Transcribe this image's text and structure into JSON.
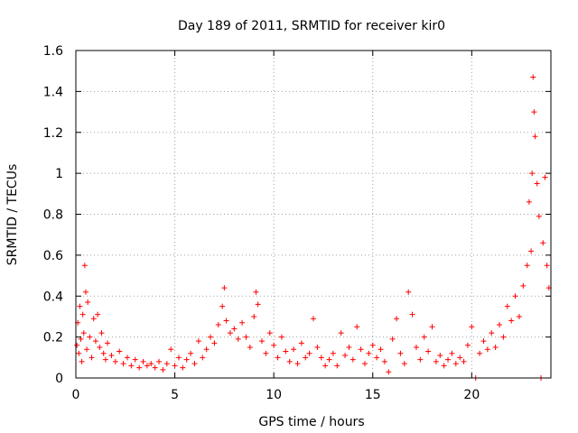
{
  "chart_data": {
    "type": "scatter",
    "title": "Day 189 of 2011, SRMTID for receiver kir0",
    "xlabel": "GPS time / hours",
    "ylabel": "SRMTID / TECUs",
    "xlim": [
      0,
      24
    ],
    "ylim": [
      0,
      1.6
    ],
    "x_ticks": [
      "0",
      "5",
      "10",
      "15",
      "20"
    ],
    "y_ticks": [
      "0",
      "0.2",
      "0.4",
      "0.6",
      "0.8",
      "1",
      "1.2",
      "1.4",
      "1.6"
    ],
    "grid": true,
    "marker": "+",
    "color": "#ff0000",
    "series": [
      {
        "points": [
          [
            0.05,
            0.16
          ],
          [
            0.1,
            0.27
          ],
          [
            0.15,
            0.12
          ],
          [
            0.2,
            0.35
          ],
          [
            0.25,
            0.19
          ],
          [
            0.3,
            0.08
          ],
          [
            0.35,
            0.31
          ],
          [
            0.4,
            0.22
          ],
          [
            0.45,
            0.55
          ],
          [
            0.5,
            0.42
          ],
          [
            0.55,
            0.14
          ],
          [
            0.6,
            0.37
          ],
          [
            0.7,
            0.2
          ],
          [
            0.8,
            0.1
          ],
          [
            0.9,
            0.29
          ],
          [
            1.0,
            0.18
          ],
          [
            1.1,
            0.31
          ],
          [
            1.2,
            0.15
          ],
          [
            1.3,
            0.22
          ],
          [
            1.4,
            0.12
          ],
          [
            1.5,
            0.09
          ],
          [
            1.6,
            0.17
          ],
          [
            1.8,
            0.11
          ],
          [
            2.0,
            0.08
          ],
          [
            2.2,
            0.13
          ],
          [
            2.4,
            0.07
          ],
          [
            2.6,
            0.1
          ],
          [
            2.8,
            0.06
          ],
          [
            3.0,
            0.09
          ],
          [
            3.2,
            0.05
          ],
          [
            3.4,
            0.08
          ],
          [
            3.6,
            0.06
          ],
          [
            3.8,
            0.07
          ],
          [
            4.0,
            0.05
          ],
          [
            4.2,
            0.08
          ],
          [
            4.4,
            0.04
          ],
          [
            4.6,
            0.07
          ],
          [
            4.8,
            0.14
          ],
          [
            5.0,
            0.06
          ],
          [
            5.2,
            0.1
          ],
          [
            5.4,
            0.05
          ],
          [
            5.6,
            0.09
          ],
          [
            5.8,
            0.12
          ],
          [
            6.0,
            0.07
          ],
          [
            6.2,
            0.18
          ],
          [
            6.4,
            0.1
          ],
          [
            6.6,
            0.14
          ],
          [
            6.8,
            0.2
          ],
          [
            7.0,
            0.17
          ],
          [
            7.2,
            0.26
          ],
          [
            7.4,
            0.35
          ],
          [
            7.5,
            0.44
          ],
          [
            7.6,
            0.28
          ],
          [
            7.8,
            0.22
          ],
          [
            8.0,
            0.24
          ],
          [
            8.2,
            0.19
          ],
          [
            8.4,
            0.27
          ],
          [
            8.6,
            0.2
          ],
          [
            8.8,
            0.15
          ],
          [
            9.0,
            0.3
          ],
          [
            9.1,
            0.42
          ],
          [
            9.2,
            0.36
          ],
          [
            9.4,
            0.18
          ],
          [
            9.6,
            0.12
          ],
          [
            9.8,
            0.22
          ],
          [
            10.0,
            0.16
          ],
          [
            10.2,
            0.1
          ],
          [
            10.4,
            0.2
          ],
          [
            10.6,
            0.13
          ],
          [
            10.8,
            0.08
          ],
          [
            11.0,
            0.14
          ],
          [
            11.2,
            0.07
          ],
          [
            11.4,
            0.17
          ],
          [
            11.6,
            0.1
          ],
          [
            11.8,
            0.12
          ],
          [
            12.0,
            0.29
          ],
          [
            12.2,
            0.15
          ],
          [
            12.4,
            0.1
          ],
          [
            12.6,
            0.06
          ],
          [
            12.8,
            0.09
          ],
          [
            13.0,
            0.12
          ],
          [
            13.2,
            0.06
          ],
          [
            13.4,
            0.22
          ],
          [
            13.6,
            0.11
          ],
          [
            13.8,
            0.15
          ],
          [
            14.0,
            0.09
          ],
          [
            14.2,
            0.25
          ],
          [
            14.4,
            0.14
          ],
          [
            14.6,
            0.07
          ],
          [
            14.8,
            0.12
          ],
          [
            15.0,
            0.16
          ],
          [
            15.2,
            0.1
          ],
          [
            15.4,
            0.14
          ],
          [
            15.6,
            0.08
          ],
          [
            15.8,
            0.03
          ],
          [
            16.0,
            0.19
          ],
          [
            16.2,
            0.29
          ],
          [
            16.4,
            0.12
          ],
          [
            16.6,
            0.07
          ],
          [
            16.8,
            0.42
          ],
          [
            17.0,
            0.31
          ],
          [
            17.2,
            0.15
          ],
          [
            17.4,
            0.09
          ],
          [
            17.6,
            0.2
          ],
          [
            17.8,
            0.13
          ],
          [
            18.0,
            0.25
          ],
          [
            18.2,
            0.08
          ],
          [
            18.4,
            0.11
          ],
          [
            18.6,
            0.06
          ],
          [
            18.8,
            0.09
          ],
          [
            19.0,
            0.12
          ],
          [
            19.2,
            0.07
          ],
          [
            19.4,
            0.1
          ],
          [
            19.6,
            0.08
          ],
          [
            19.8,
            0.16
          ],
          [
            20.0,
            0.25
          ],
          [
            20.2,
            0.0
          ],
          [
            20.4,
            0.12
          ],
          [
            20.6,
            0.18
          ],
          [
            20.8,
            0.14
          ],
          [
            21.0,
            0.22
          ],
          [
            21.2,
            0.15
          ],
          [
            21.4,
            0.26
          ],
          [
            21.6,
            0.2
          ],
          [
            21.8,
            0.35
          ],
          [
            22.0,
            0.28
          ],
          [
            22.2,
            0.4
          ],
          [
            22.4,
            0.3
          ],
          [
            22.6,
            0.45
          ],
          [
            22.8,
            0.55
          ],
          [
            22.9,
            0.86
          ],
          [
            23.0,
            0.62
          ],
          [
            23.05,
            1.0
          ],
          [
            23.1,
            1.47
          ],
          [
            23.15,
            1.3
          ],
          [
            23.2,
            1.18
          ],
          [
            23.3,
            0.95
          ],
          [
            23.4,
            0.79
          ],
          [
            23.5,
            0.0
          ],
          [
            23.6,
            0.66
          ],
          [
            23.7,
            0.98
          ],
          [
            23.8,
            0.55
          ],
          [
            23.9,
            0.44
          ]
        ]
      }
    ]
  }
}
